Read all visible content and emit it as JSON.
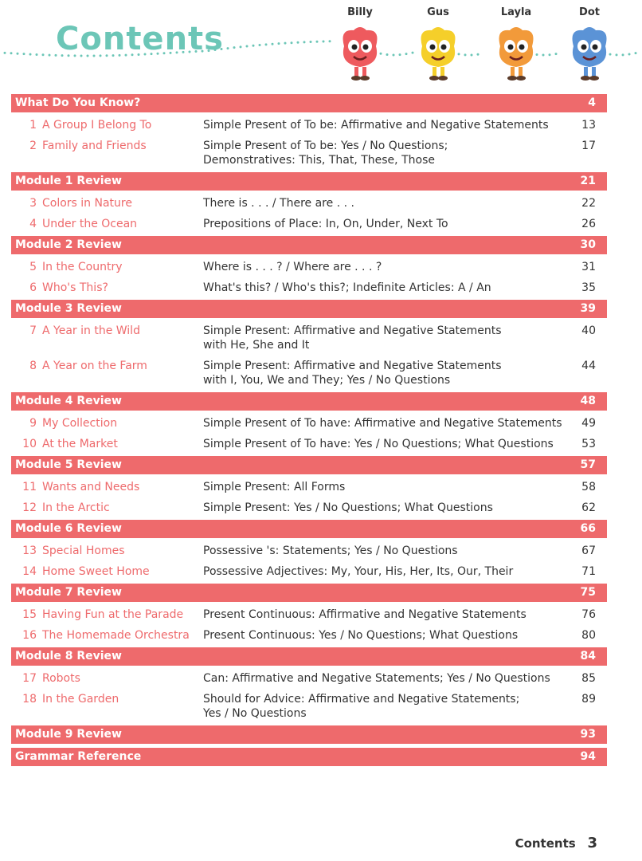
{
  "header": {
    "title": "Contents",
    "characters": [
      {
        "name": "Billy",
        "color": "#ee5a5e",
        "icon": "billy-character-icon"
      },
      {
        "name": "Gus",
        "color": "#f5cf2a",
        "icon": "gus-character-icon"
      },
      {
        "name": "Layla",
        "color": "#f29a3a",
        "icon": "layla-character-icon"
      },
      {
        "name": "Dot",
        "color": "#5b93d6",
        "icon": "dot-character-icon"
      }
    ]
  },
  "colors": {
    "accent": "#ee6a6c",
    "title": "#6cc6b7",
    "text": "#333333"
  },
  "sections": [
    {
      "title": "What Do You Know?",
      "page": "4",
      "units": [
        {
          "num": "1",
          "name": "A Group I Belong To",
          "grammar": [
            "Simple Present of To be: Affirmative and Negative Statements"
          ],
          "page": "13"
        },
        {
          "num": "2",
          "name": "Family and Friends",
          "grammar": [
            "Simple Present of  To be: Yes / No Questions;",
            "Demonstratives: This, That, These, Those"
          ],
          "page": "17"
        }
      ]
    },
    {
      "title": "Module 1 Review",
      "page": "21",
      "units": [
        {
          "num": "3",
          "name": "Colors in Nature",
          "grammar": [
            "There is . . . / There are . . ."
          ],
          "page": "22"
        },
        {
          "num": "4",
          "name": "Under the Ocean",
          "grammar": [
            "Prepositions of Place: In, On, Under, Next To"
          ],
          "page": "26"
        }
      ]
    },
    {
      "title": "Module 2 Review",
      "page": "30",
      "units": [
        {
          "num": "5",
          "name": "In the Country",
          "grammar": [
            "Where is . . . ? / Where are . . . ?"
          ],
          "page": "31"
        },
        {
          "num": "6",
          "name": "Who's This?",
          "grammar": [
            "What's this? / Who's this?; Indefinite Articles: A / An"
          ],
          "page": "35"
        }
      ]
    },
    {
      "title": "Module 3 Review",
      "page": "39",
      "units": [
        {
          "num": "7",
          "name": "A Year in the Wild",
          "grammar": [
            "Simple Present: Affirmative and Negative Statements",
            "with He, She and It"
          ],
          "page": "40"
        },
        {
          "num": "8",
          "name": "A Year on the Farm",
          "grammar": [
            "Simple Present: Affirmative and Negative Statements",
            "with I, You, We and They; Yes / No Questions"
          ],
          "page": "44"
        }
      ]
    },
    {
      "title": "Module 4 Review",
      "page": "48",
      "units": [
        {
          "num": "9",
          "name": "My Collection",
          "grammar": [
            "Simple Present of To have: Affirmative and Negative Statements"
          ],
          "page": "49"
        },
        {
          "num": "10",
          "name": "At the Market",
          "grammar": [
            "Simple Present of To have: Yes / No Questions; What Questions"
          ],
          "page": "53"
        }
      ]
    },
    {
      "title": "Module 5 Review",
      "page": "57",
      "units": [
        {
          "num": "11",
          "name": "Wants and Needs",
          "grammar": [
            "Simple Present: All Forms"
          ],
          "page": "58"
        },
        {
          "num": "12",
          "name": "In the Arctic",
          "grammar": [
            "Simple Present: Yes / No Questions; What Questions"
          ],
          "page": "62"
        }
      ]
    },
    {
      "title": "Module 6 Review",
      "page": "66",
      "units": [
        {
          "num": "13",
          "name": "Special Homes",
          "grammar": [
            "Possessive 's: Statements; Yes / No Questions"
          ],
          "page": "67"
        },
        {
          "num": "14",
          "name": "Home Sweet Home",
          "grammar": [
            "Possessive Adjectives: My, Your, His, Her, Its, Our, Their"
          ],
          "page": "71"
        }
      ]
    },
    {
      "title": "Module 7 Review",
      "page": "75",
      "units": [
        {
          "num": "15",
          "name": "Having Fun at the Parade",
          "grammar": [
            "Present Continuous: Affirmative and Negative Statements"
          ],
          "page": "76"
        },
        {
          "num": "16",
          "name": "The Homemade Orchestra",
          "grammar": [
            "Present Continuous: Yes / No Questions; What Questions"
          ],
          "page": "80"
        }
      ]
    },
    {
      "title": "Module 8 Review",
      "page": "84",
      "units": [
        {
          "num": "17",
          "name": "Robots",
          "grammar": [
            "Can: Affirmative and Negative Statements; Yes / No Questions"
          ],
          "page": "85"
        },
        {
          "num": "18",
          "name": "In the Garden",
          "grammar": [
            "Should for Advice: Affirmative and Negative Statements;",
            "Yes / No Questions"
          ],
          "page": "89"
        }
      ]
    },
    {
      "title": "Module 9 Review",
      "page": "93",
      "units": []
    },
    {
      "title": "Grammar Reference",
      "page": "94",
      "units": []
    }
  ],
  "footer": {
    "label": "Contents",
    "page_number": "3"
  }
}
